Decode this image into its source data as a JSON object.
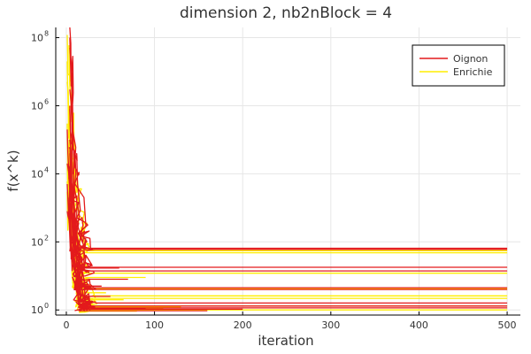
{
  "chart_data": {
    "type": "line",
    "title": "dimension 2, nb2nBlock = 4",
    "xlabel": "iteration",
    "ylabel": "f(x^k)",
    "xlim": [
      -12,
      515
    ],
    "ylog_exponent_range": [
      -0.15,
      8.3
    ],
    "yscale": "log10",
    "x_ticks": [
      0,
      100,
      200,
      300,
      400,
      500
    ],
    "x_tick_labels": [
      "0",
      "100",
      "200",
      "300",
      "400",
      "500"
    ],
    "y_ticks_exponent": [
      0,
      2,
      4,
      6,
      8
    ],
    "y_tick_labels": [
      {
        "base": "10",
        "exp": "0"
      },
      {
        "base": "10",
        "exp": "2"
      },
      {
        "base": "10",
        "exp": "4"
      },
      {
        "base": "10",
        "exp": "6"
      },
      {
        "base": "10",
        "exp": "8"
      }
    ],
    "grid": true,
    "legend_position": "top-right",
    "colors": {
      "Oignon": "#e31a1c",
      "Enrichie": "#ffee00"
    },
    "series": [
      {
        "name": "Oignon",
        "color": "#e31a1c",
        "runs": [
          {
            "start": 220000000.0,
            "end": 65,
            "iters": 500
          },
          {
            "start": 100000000.0,
            "end": 60,
            "iters": 500
          },
          {
            "start": 50000000.0,
            "end": 18,
            "iters": 500
          },
          {
            "start": 3000000.0,
            "end": 14,
            "iters": 500
          },
          {
            "start": 800000.0,
            "end": 4.5,
            "iters": 500
          },
          {
            "start": 200000.0,
            "end": 4.0,
            "iters": 500
          },
          {
            "start": 60000.0,
            "end": 1.6,
            "iters": 500
          },
          {
            "start": 100000.0,
            "end": 1.3,
            "iters": 500
          },
          {
            "start": 40000.0,
            "end": 1.15,
            "iters": 500
          },
          {
            "start": 20000.0,
            "end": 1.05,
            "iters": 200
          },
          {
            "start": 9000.0,
            "end": 17,
            "iters": 60
          },
          {
            "start": 5000.0,
            "end": 8,
            "iters": 70
          },
          {
            "start": 3000.0,
            "end": 5,
            "iters": 40
          },
          {
            "start": 1500.0,
            "end": 2.5,
            "iters": 50
          },
          {
            "start": 800,
            "end": 1.8,
            "iters": 30
          },
          {
            "start": 400,
            "end": 1.4,
            "iters": 25
          },
          {
            "start": 300,
            "end": 1.2,
            "iters": 15
          },
          {
            "start": 2000.0,
            "end": 1.1,
            "iters": 90
          },
          {
            "start": 1000000.0,
            "end": 0.95,
            "iters": 160
          },
          {
            "start": 7000.0,
            "end": 10,
            "iters": 20
          }
        ]
      },
      {
        "name": "Enrichie",
        "color": "#ffee00",
        "runs": [
          {
            "start": 120000000.0,
            "end": 55,
            "iters": 500
          },
          {
            "start": 60000000.0,
            "end": 48,
            "iters": 500
          },
          {
            "start": 20000000.0,
            "end": 12,
            "iters": 500
          },
          {
            "start": 5000000.0,
            "end": 4.2,
            "iters": 500
          },
          {
            "start": 1000000.0,
            "end": 2.6,
            "iters": 500
          },
          {
            "start": 300000.0,
            "end": 2.2,
            "iters": 500
          },
          {
            "start": 100000.0,
            "end": 1.3,
            "iters": 500
          },
          {
            "start": 50000.0,
            "end": 1.0,
            "iters": 500
          },
          {
            "start": 20000.0,
            "end": 9,
            "iters": 90
          },
          {
            "start": 10000.0,
            "end": 3.2,
            "iters": 45
          },
          {
            "start": 6000.0,
            "end": 2.0,
            "iters": 65
          },
          {
            "start": 3000.0,
            "end": 1.5,
            "iters": 35
          },
          {
            "start": 1500.0,
            "end": 1.2,
            "iters": 130
          },
          {
            "start": 700,
            "end": 0.92,
            "iters": 80
          },
          {
            "start": 400,
            "end": 1.7,
            "iters": 20
          },
          {
            "start": 900000.0,
            "end": 1.1,
            "iters": 110
          }
        ]
      }
    ]
  }
}
